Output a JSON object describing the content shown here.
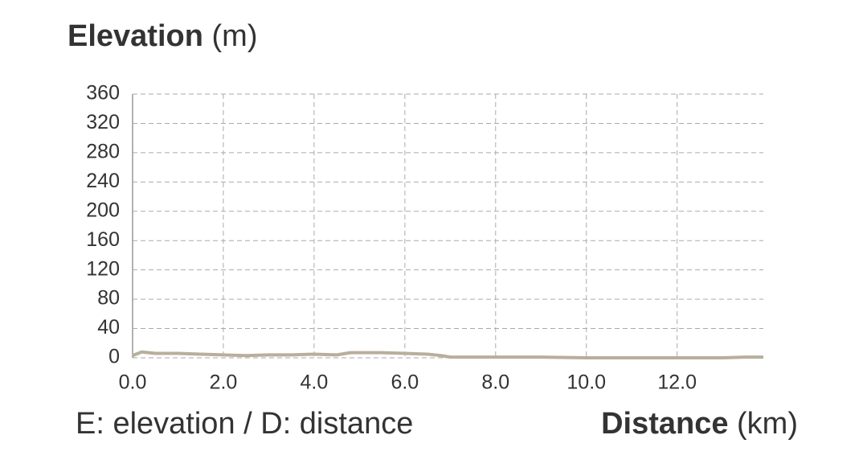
{
  "chart_data": {
    "type": "line",
    "y_label": "Elevation",
    "y_unit": "(m)",
    "x_label": "Distance",
    "x_unit": "(km)",
    "note": "E: elevation / D: distance",
    "x": [
      0,
      0.2,
      0.5,
      1.0,
      1.5,
      2.0,
      2.5,
      3.0,
      3.5,
      4.0,
      4.5,
      4.8,
      5.5,
      6.0,
      6.5,
      6.8,
      7.0,
      8.0,
      9.0,
      10.0,
      11.0,
      12.0,
      13.0,
      13.5,
      13.9
    ],
    "series": [
      {
        "name": "Elevation",
        "color": "#b9ae9d",
        "values": [
          3,
          8,
          6,
          6,
          5,
          4,
          3,
          4,
          4,
          5,
          4,
          7,
          7,
          6,
          5,
          3,
          1,
          1,
          1,
          0,
          0,
          0,
          0,
          1,
          1
        ]
      }
    ],
    "xlim": [
      0,
      13.9
    ],
    "xticks": [
      {
        "value": 0,
        "label": "0.0"
      },
      {
        "value": 2,
        "label": "2.0"
      },
      {
        "value": 4,
        "label": "4.0"
      },
      {
        "value": 6,
        "label": "6.0"
      },
      {
        "value": 8,
        "label": "8.0"
      },
      {
        "value": 10,
        "label": "10.0"
      },
      {
        "value": 12,
        "label": "12.0"
      }
    ],
    "ylim": [
      0,
      360
    ],
    "yticks": [
      0,
      40,
      80,
      120,
      160,
      200,
      240,
      280,
      320,
      360
    ],
    "grid": true
  }
}
